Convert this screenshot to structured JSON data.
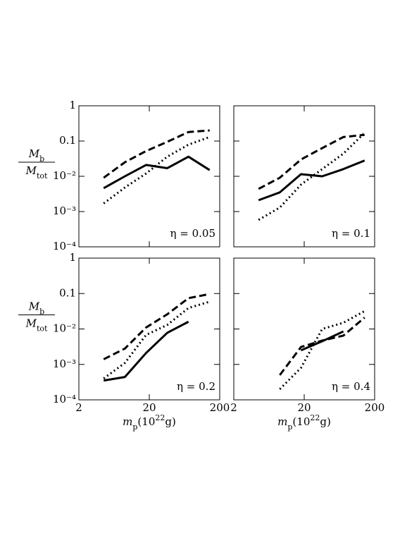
{
  "chart_data": [
    {
      "type": "line",
      "xscale": "log",
      "yscale": "log",
      "xlim": [
        2,
        200
      ],
      "ylim": [
        0.0001,
        1
      ],
      "xticks": [
        2,
        20,
        200
      ],
      "xticklabels": false,
      "yticklabels": true,
      "yticks": [
        1,
        0.1,
        {
          "value": 0.01,
          "label": "10⁻²"
        },
        {
          "value": 0.001,
          "label": "10⁻³"
        },
        {
          "value": 0.0001,
          "label": "10⁻⁴"
        }
      ],
      "ylabel": {
        "numerator": [
          "M",
          "b"
        ],
        "denominator": [
          "M",
          "tot"
        ]
      },
      "annotation": "η = 0.05",
      "x": [
        4.5,
        9,
        18,
        36,
        72,
        144
      ],
      "series": [
        {
          "style": "solid",
          "color": "#000000",
          "values": [
            0.0046,
            0.01,
            0.021,
            0.017,
            0.036,
            0.015
          ]
        },
        {
          "style": "dashed",
          "color": "#000000",
          "values": [
            0.0091,
            0.025,
            0.052,
            0.095,
            0.18,
            0.2
          ]
        },
        {
          "style": "dotted",
          "color": "#000000",
          "values": [
            0.0017,
            0.0048,
            0.012,
            0.036,
            0.079,
            0.13
          ]
        }
      ]
    },
    {
      "type": "line",
      "xscale": "log",
      "yscale": "log",
      "xlim": [
        2,
        200
      ],
      "ylim": [
        0.0001,
        1
      ],
      "xticks": [
        2,
        20,
        200
      ],
      "xticklabels": false,
      "yticklabels": false,
      "yticks": [
        1,
        0.1,
        0.01,
        0.001,
        0.0001
      ],
      "annotation": "η = 0.1",
      "x": [
        4.5,
        9,
        18,
        36,
        72,
        144
      ],
      "series": [
        {
          "style": "solid",
          "color": "#000000",
          "values": [
            0.0021,
            0.0035,
            0.0115,
            0.01,
            0.016,
            0.028
          ]
        },
        {
          "style": "dashed",
          "color": "#000000",
          "values": [
            0.0044,
            0.0091,
            0.03,
            0.063,
            0.13,
            0.15
          ]
        },
        {
          "style": "dotted",
          "color": "#000000",
          "values": [
            0.00058,
            0.0013,
            0.0058,
            0.016,
            0.044,
            0.17
          ]
        }
      ]
    },
    {
      "type": "line",
      "xscale": "log",
      "yscale": "log",
      "xlim": [
        2,
        200
      ],
      "ylim": [
        0.0001,
        1
      ],
      "xticks": [
        2,
        20,
        200
      ],
      "xticklabels": true,
      "yticklabels": true,
      "yticks": [
        1,
        0.1,
        {
          "value": 0.01,
          "label": "10⁻²"
        },
        {
          "value": 0.001,
          "label": "10⁻³"
        },
        {
          "value": 0.0001,
          "label": "10⁻⁴"
        }
      ],
      "ylabel": {
        "numerator": [
          "M",
          "b"
        ],
        "denominator": [
          "M",
          "tot"
        ]
      },
      "xlabel": [
        "m",
        "p",
        "(10",
        "22",
        "g)"
      ],
      "annotation": "η = 0.2",
      "x": [
        4.5,
        9,
        18,
        36,
        72,
        144
      ],
      "series": [
        {
          "style": "solid",
          "color": "#000000",
          "values": [
            0.00035,
            0.00044,
            0.0021,
            0.0078,
            0.016,
            null
          ]
        },
        {
          "style": "dashed",
          "color": "#000000",
          "values": [
            0.0014,
            0.0028,
            0.011,
            0.026,
            0.074,
            0.097
          ]
        },
        {
          "style": "dotted",
          "color": "#000000",
          "values": [
            0.0004,
            0.0011,
            0.0068,
            0.013,
            0.039,
            0.059
          ]
        }
      ]
    },
    {
      "type": "line",
      "xscale": "log",
      "yscale": "log",
      "xlim": [
        2,
        200
      ],
      "ylim": [
        0.0001,
        1
      ],
      "xticks": [
        2,
        20,
        200
      ],
      "xticklabels": true,
      "yticklabels": false,
      "yticks": [
        1,
        0.1,
        0.01,
        0.001,
        0.0001
      ],
      "xlabel": [
        "m",
        "p",
        "(10",
        "22",
        "g)"
      ],
      "annotation": "η = 0.4",
      "x": [
        9,
        18,
        36,
        72,
        144
      ],
      "series": [
        {
          "style": "solid",
          "color": "#000000",
          "values": [
            null,
            0.0025,
            0.0045,
            0.0085,
            null
          ]
        },
        {
          "style": "dashed",
          "color": "#000000",
          "values": [
            0.0005,
            0.0031,
            0.0047,
            0.0065,
            0.021
          ]
        },
        {
          "style": "dotted",
          "color": "#000000",
          "values": [
            0.0002,
            0.0008,
            0.01,
            0.015,
            0.032
          ]
        }
      ]
    }
  ]
}
